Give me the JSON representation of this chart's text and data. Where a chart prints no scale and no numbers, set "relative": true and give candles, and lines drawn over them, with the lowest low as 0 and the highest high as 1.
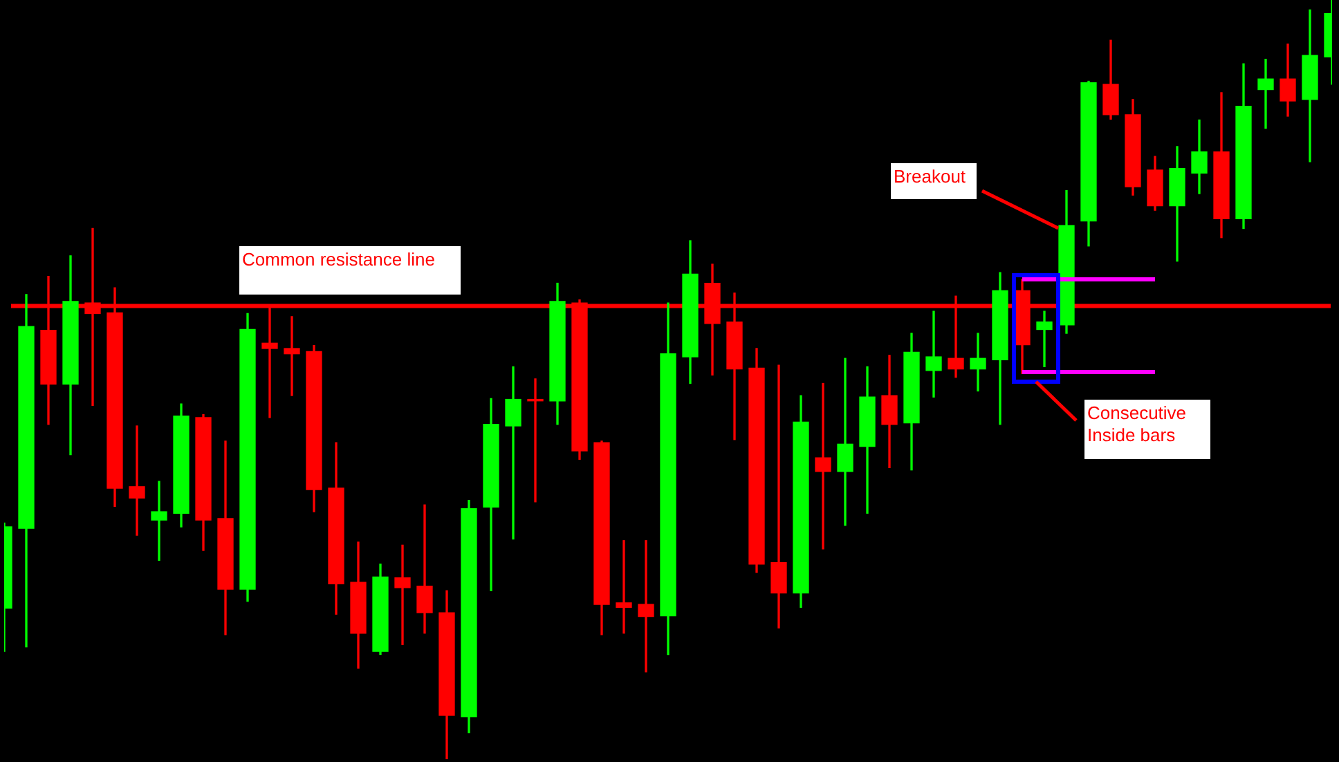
{
  "chart_data": {
    "type": "candlestick",
    "relative": true,
    "categories": [
      null,
      null,
      null,
      null,
      null,
      null,
      null,
      null,
      null,
      null,
      null,
      null,
      null,
      null,
      null,
      null,
      null,
      null,
      null,
      null,
      null,
      null,
      null,
      null,
      null,
      null,
      null,
      null,
      null,
      null,
      null,
      null,
      null,
      null,
      null,
      null,
      null,
      null,
      null,
      null,
      null,
      null,
      null,
      null,
      null,
      null,
      null,
      null,
      null,
      null,
      null,
      null,
      null,
      null,
      null,
      null,
      null,
      null,
      null,
      null,
      null
    ],
    "ohlc": [
      [
        0.199,
        0.311,
        0.142,
        0.306
      ],
      [
        0.304,
        0.612,
        0.148,
        0.57
      ],
      [
        0.565,
        0.636,
        0.441,
        0.494
      ],
      [
        0.494,
        0.663,
        0.401,
        0.603
      ],
      [
        0.601,
        0.699,
        0.466,
        0.587
      ],
      [
        0.588,
        0.621,
        0.333,
        0.357
      ],
      [
        0.359,
        0.439,
        0.295,
        0.344
      ],
      [
        0.315,
        0.366,
        0.262,
        0.326
      ],
      [
        0.324,
        0.468,
        0.306,
        0.452
      ],
      [
        0.45,
        0.454,
        0.275,
        0.315
      ],
      [
        0.317,
        0.419,
        0.164,
        0.224
      ],
      [
        0.224,
        0.587,
        0.208,
        0.566
      ],
      [
        0.548,
        0.597,
        0.45,
        0.541
      ],
      [
        0.541,
        0.583,
        0.479,
        0.534
      ],
      [
        0.537,
        0.545,
        0.326,
        0.355
      ],
      [
        0.357,
        0.417,
        0.191,
        0.231
      ],
      [
        0.233,
        0.286,
        0.12,
        0.166
      ],
      [
        0.142,
        0.257,
        0.138,
        0.24
      ],
      [
        0.239,
        0.282,
        0.151,
        0.226
      ],
      [
        0.228,
        0.335,
        0.166,
        0.193
      ],
      [
        0.193,
        0.222,
        0,
        0.058
      ],
      [
        0.056,
        0.341,
        0.035,
        0.33
      ],
      [
        0.332,
        0.475,
        0.222,
        0.441
      ],
      [
        0.439,
        0.517,
        0.29,
        0.474
      ],
      [
        0.474,
        0.501,
        0.339,
        0.472
      ],
      [
        0.472,
        0.627,
        0.441,
        0.603
      ],
      [
        0.601,
        0.605,
        0.395,
        0.406
      ],
      [
        0.417,
        0.419,
        0.164,
        0.204
      ],
      [
        0.206,
        0.288,
        0.166,
        0.2
      ],
      [
        0.204,
        0.288,
        0.115,
        0.188
      ],
      [
        0.189,
        0.601,
        0.138,
        0.534
      ],
      [
        0.53,
        0.683,
        0.495,
        0.639
      ],
      [
        0.627,
        0.652,
        0.506,
        0.574
      ],
      [
        0.576,
        0.614,
        0.421,
        0.514
      ],
      [
        0.515,
        0.541,
        0.246,
        0.257
      ],
      [
        0.259,
        0.519,
        0.173,
        0.219
      ],
      [
        0.219,
        0.479,
        0.2,
        0.444
      ],
      [
        0.397,
        0.495,
        0.277,
        0.379
      ],
      [
        0.379,
        0.528,
        0.308,
        0.415
      ],
      [
        0.412,
        0.517,
        0.324,
        0.477
      ],
      [
        0.479,
        0.532,
        0.384,
        0.441
      ],
      [
        0.443,
        0.561,
        0.381,
        0.536
      ],
      [
        0.512,
        0.59,
        0.477,
        0.53
      ],
      [
        0.528,
        0.61,
        0.503,
        0.514
      ],
      [
        0.514,
        0.561,
        0.485,
        0.528
      ],
      [
        0.526,
        0.641,
        0.441,
        0.617
      ],
      [
        0.617,
        0.632,
        0.508,
        0.546
      ],
      [
        0.566,
        0.59,
        0.517,
        0.576
      ],
      [
        0.572,
        0.749,
        0.561,
        0.703
      ],
      [
        0.709,
        0.893,
        0.676,
        0.891
      ],
      [
        0.889,
        0.947,
        0.843,
        0.849
      ],
      [
        0.849,
        0.869,
        0.743,
        0.754
      ],
      [
        0.776,
        0.794,
        0.723,
        0.729
      ],
      [
        0.729,
        0.807,
        0.656,
        0.778
      ],
      [
        0.772,
        0.842,
        0.745,
        0.8
      ],
      [
        0.8,
        0.878,
        0.687,
        0.712
      ],
      [
        0.712,
        0.916,
        0.699,
        0.86
      ],
      [
        0.882,
        0.922,
        0.831,
        0.896
      ],
      [
        0.896,
        0.942,
        0.847,
        0.867
      ],
      [
        0.869,
        0.987,
        0.787,
        0.927
      ],
      [
        0.925,
        1,
        0.889,
        0.982
      ]
    ],
    "series": [
      {
        "type": "line",
        "color": "#ff00ff",
        "values": [
          null,
          null,
          null,
          null,
          null,
          null,
          null,
          null,
          null,
          null,
          null,
          null,
          null,
          null,
          null,
          null,
          null,
          null,
          null,
          null,
          null,
          null,
          null,
          null,
          null,
          null,
          null,
          null,
          null,
          null,
          null,
          null,
          null,
          null,
          null,
          null,
          null,
          null,
          null,
          null,
          null,
          null,
          null,
          null,
          null,
          null,
          0.632,
          0.632,
          0.632,
          0.632,
          0.632,
          0.632,
          0.632,
          null,
          null,
          null,
          null,
          null,
          null,
          null,
          null
        ]
      },
      {
        "type": "line",
        "color": "#ff00ff",
        "values": [
          null,
          null,
          null,
          null,
          null,
          null,
          null,
          null,
          null,
          null,
          null,
          null,
          null,
          null,
          null,
          null,
          null,
          null,
          null,
          null,
          null,
          null,
          null,
          null,
          null,
          null,
          null,
          null,
          null,
          null,
          null,
          null,
          null,
          null,
          null,
          null,
          null,
          null,
          null,
          null,
          null,
          null,
          null,
          null,
          null,
          null,
          0.51,
          0.51,
          0.51,
          0.51,
          0.51,
          0.51,
          0.51,
          null,
          null,
          null,
          null,
          null,
          null,
          null,
          null
        ]
      }
    ],
    "ref_lines": [
      {
        "axis": "y",
        "value": 0.597,
        "label": "Common resistance line",
        "color": "#ff0000"
      }
    ],
    "annotations": [
      "Breakout",
      "Consecutive Inside bars"
    ]
  }
}
